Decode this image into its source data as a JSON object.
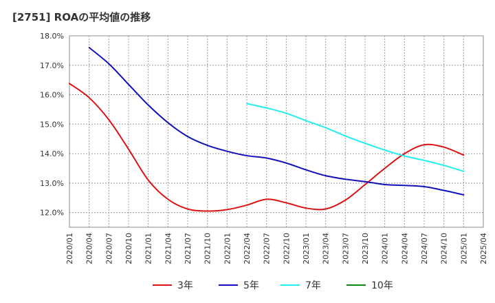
{
  "title": "[2751]  ROAの平均値の推移",
  "chart_data": {
    "type": "line",
    "title": "[2751]  ROAの平均値の推移",
    "xlabel": "",
    "ylabel": "",
    "x": [
      "2020/01",
      "2020/04",
      "2020/07",
      "2020/10",
      "2021/01",
      "2021/04",
      "2021/07",
      "2021/10",
      "2022/01",
      "2022/04",
      "2022/07",
      "2022/10",
      "2023/01",
      "2023/04",
      "2023/07",
      "2023/10",
      "2024/01",
      "2024/04",
      "2024/07",
      "2024/10",
      "2025/01",
      "2025/04"
    ],
    "ylim": [
      11.5,
      18.0
    ],
    "yticks": [
      12.0,
      13.0,
      14.0,
      15.0,
      16.0,
      17.0,
      18.0
    ],
    "ytick_labels": [
      "12.0%",
      "13.0%",
      "14.0%",
      "15.0%",
      "16.0%",
      "17.0%",
      "18.0%"
    ],
    "grid": true,
    "legend_position": "bottom",
    "series": [
      {
        "name": "3年",
        "color": "#dd1111",
        "values": [
          16.38,
          15.9,
          15.15,
          14.15,
          13.1,
          12.45,
          12.12,
          12.05,
          12.1,
          12.25,
          12.45,
          12.33,
          12.15,
          12.12,
          12.42,
          12.95,
          13.5,
          14.0,
          14.3,
          14.22,
          13.95,
          null
        ]
      },
      {
        "name": "5年",
        "color": "#1111bb",
        "values": [
          null,
          17.6,
          17.05,
          16.35,
          15.65,
          15.05,
          14.58,
          14.28,
          14.08,
          13.93,
          13.85,
          13.68,
          13.45,
          13.25,
          13.13,
          13.05,
          12.95,
          12.92,
          12.88,
          12.75,
          12.6,
          null
        ]
      },
      {
        "name": "7年",
        "color": "#22eeee",
        "values": [
          null,
          null,
          null,
          null,
          null,
          null,
          null,
          null,
          null,
          15.7,
          15.55,
          15.37,
          15.12,
          14.88,
          14.6,
          14.35,
          14.12,
          13.92,
          13.77,
          13.6,
          13.4,
          null
        ]
      },
      {
        "name": "10年",
        "color": "#118811",
        "values": [
          null,
          null,
          null,
          null,
          null,
          null,
          null,
          null,
          null,
          null,
          null,
          null,
          null,
          null,
          null,
          null,
          null,
          null,
          null,
          null,
          null,
          null
        ]
      }
    ]
  }
}
